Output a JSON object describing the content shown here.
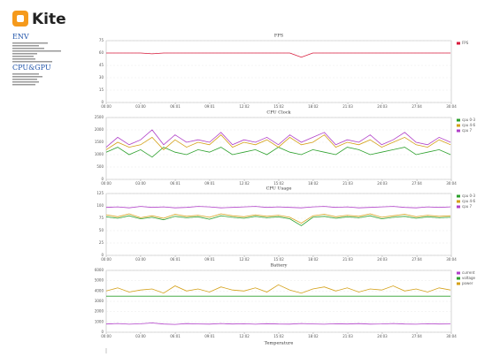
{
  "logo": "Kite",
  "sections": [
    "ENV",
    "CPU&GPU"
  ],
  "chart_data": [
    {
      "type": "line",
      "title": "FPS",
      "x": [
        0,
        60,
        120,
        180,
        240,
        300,
        360,
        420,
        480,
        540,
        600,
        660,
        720,
        780,
        840,
        900,
        960,
        1020,
        1080,
        1140,
        1200,
        1260,
        1320,
        1380,
        1440,
        1500,
        1560,
        1620,
        1680,
        1740,
        1800
      ],
      "xlim": [
        0,
        1804
      ],
      "xticks": [
        {
          "value": 0,
          "label": "00:00"
        },
        {
          "value": 180,
          "label": "03:00"
        },
        {
          "value": 361,
          "label": "06:01"
        },
        {
          "value": 541,
          "label": "09:01"
        },
        {
          "value": 722,
          "label": "12:02"
        },
        {
          "value": 902,
          "label": "15:02"
        },
        {
          "value": 1082,
          "label": "18:02"
        },
        {
          "value": 1263,
          "label": "21:03"
        },
        {
          "value": 1443,
          "label": "24:03"
        },
        {
          "value": 1624,
          "label": "27:04"
        },
        {
          "value": 1804,
          "label": "30:04"
        }
      ],
      "ylim": [
        0,
        75
      ],
      "yticks": [
        0,
        15,
        30,
        45,
        60,
        75
      ],
      "series": [
        {
          "name": "FPS",
          "color": "#d81b3c",
          "values": [
            60,
            60,
            60,
            60,
            59,
            60,
            60,
            60,
            60,
            60,
            60,
            60,
            60,
            60,
            60,
            60,
            60,
            55,
            60,
            60,
            60,
            60,
            60,
            60,
            60,
            60,
            60,
            60,
            60,
            60,
            60
          ]
        }
      ]
    },
    {
      "type": "line",
      "title": "CPU Clock",
      "x": [
        0,
        60,
        120,
        180,
        240,
        300,
        360,
        420,
        480,
        540,
        600,
        660,
        720,
        780,
        840,
        900,
        960,
        1020,
        1080,
        1140,
        1200,
        1260,
        1320,
        1380,
        1440,
        1500,
        1560,
        1620,
        1680,
        1740,
        1800
      ],
      "xlim": [
        0,
        1804
      ],
      "xticks": [
        {
          "value": 0,
          "label": "00:00"
        },
        {
          "value": 180,
          "label": "03:00"
        },
        {
          "value": 361,
          "label": "06:01"
        },
        {
          "value": 541,
          "label": "09:01"
        },
        {
          "value": 722,
          "label": "12:02"
        },
        {
          "value": 902,
          "label": "15:02"
        },
        {
          "value": 1082,
          "label": "18:02"
        },
        {
          "value": 1263,
          "label": "21:03"
        },
        {
          "value": 1443,
          "label": "24:03"
        },
        {
          "value": 1624,
          "label": "27:04"
        },
        {
          "value": 1804,
          "label": "30:04"
        }
      ],
      "ylim": [
        0,
        2500
      ],
      "yticks": [
        0,
        500,
        1000,
        1500,
        2000,
        2500
      ],
      "series": [
        {
          "name": "cpu 0-3",
          "color": "#2ca02c",
          "values": [
            1100,
            1300,
            1000,
            1200,
            900,
            1300,
            1100,
            1000,
            1200,
            1100,
            1300,
            1000,
            1100,
            1200,
            1000,
            1300,
            1100,
            1000,
            1200,
            1100,
            1000,
            1300,
            1200,
            1000,
            1100,
            1200,
            1300,
            1000,
            1100,
            1200,
            1000
          ]
        },
        {
          "name": "cpu 4-6",
          "color": "#d4a017",
          "values": [
            1200,
            1500,
            1300,
            1400,
            1700,
            1200,
            1600,
            1300,
            1500,
            1400,
            1800,
            1300,
            1500,
            1400,
            1600,
            1300,
            1700,
            1400,
            1500,
            1800,
            1300,
            1500,
            1400,
            1600,
            1300,
            1500,
            1700,
            1400,
            1300,
            1600,
            1400
          ]
        },
        {
          "name": "cpu 7",
          "color": "#b040c8",
          "values": [
            1300,
            1700,
            1400,
            1600,
            2000,
            1400,
            1800,
            1500,
            1600,
            1500,
            1900,
            1400,
            1600,
            1500,
            1700,
            1400,
            1800,
            1500,
            1700,
            1900,
            1400,
            1600,
            1500,
            1800,
            1400,
            1600,
            1900,
            1500,
            1400,
            1700,
            1500
          ]
        }
      ]
    },
    {
      "type": "line",
      "title": "CPU Usage",
      "x": [
        0,
        60,
        120,
        180,
        240,
        300,
        360,
        420,
        480,
        540,
        600,
        660,
        720,
        780,
        840,
        900,
        960,
        1020,
        1080,
        1140,
        1200,
        1260,
        1320,
        1380,
        1440,
        1500,
        1560,
        1620,
        1680,
        1740,
        1800
      ],
      "xlim": [
        0,
        1804
      ],
      "xticks": [
        {
          "value": 0,
          "label": "00:00"
        },
        {
          "value": 180,
          "label": "03:00"
        },
        {
          "value": 361,
          "label": "06:01"
        },
        {
          "value": 541,
          "label": "09:01"
        },
        {
          "value": 722,
          "label": "12:02"
        },
        {
          "value": 902,
          "label": "15:02"
        },
        {
          "value": 1082,
          "label": "18:02"
        },
        {
          "value": 1263,
          "label": "21:03"
        },
        {
          "value": 1443,
          "label": "24:03"
        },
        {
          "value": 1624,
          "label": "27:04"
        },
        {
          "value": 1804,
          "label": "30:04"
        }
      ],
      "ylim": [
        0,
        125
      ],
      "yticks": [
        0,
        25,
        50,
        75,
        100,
        125
      ],
      "series": [
        {
          "name": "cpu 0-3",
          "color": "#2ca02c",
          "values": [
            78,
            75,
            80,
            74,
            77,
            72,
            79,
            76,
            78,
            73,
            80,
            77,
            75,
            79,
            76,
            78,
            74,
            60,
            77,
            79,
            75,
            78,
            76,
            80,
            74,
            77,
            79,
            75,
            78,
            76,
            77
          ]
        },
        {
          "name": "cpu 4-6",
          "color": "#d4a017",
          "values": [
            82,
            78,
            84,
            76,
            80,
            75,
            83,
            79,
            81,
            77,
            84,
            80,
            78,
            82,
            79,
            81,
            77,
            65,
            80,
            83,
            78,
            81,
            79,
            84,
            77,
            80,
            83,
            78,
            81,
            79,
            80
          ]
        },
        {
          "name": "cpu 7",
          "color": "#b040c8",
          "values": [
            97,
            98,
            96,
            99,
            97,
            98,
            96,
            97,
            99,
            98,
            96,
            97,
            98,
            99,
            97,
            98,
            97,
            96,
            98,
            99,
            97,
            98,
            96,
            97,
            98,
            99,
            97,
            96,
            98,
            97,
            98
          ]
        }
      ]
    },
    {
      "type": "line",
      "title": "Battery",
      "x": [
        0,
        60,
        120,
        180,
        240,
        300,
        360,
        420,
        480,
        540,
        600,
        660,
        720,
        780,
        840,
        900,
        960,
        1020,
        1080,
        1140,
        1200,
        1260,
        1320,
        1380,
        1440,
        1500,
        1560,
        1620,
        1680,
        1740,
        1800
      ],
      "xlim": [
        0,
        1804
      ],
      "xticks": [
        {
          "value": 0,
          "label": "00:00"
        },
        {
          "value": 180,
          "label": "03:00"
        },
        {
          "value": 361,
          "label": "06:01"
        },
        {
          "value": 541,
          "label": "09:01"
        },
        {
          "value": 722,
          "label": "12:02"
        },
        {
          "value": 902,
          "label": "15:02"
        },
        {
          "value": 1082,
          "label": "18:02"
        },
        {
          "value": 1263,
          "label": "21:03"
        },
        {
          "value": 1443,
          "label": "24:03"
        },
        {
          "value": 1624,
          "label": "27:04"
        },
        {
          "value": 1804,
          "label": "30:04"
        }
      ],
      "ylim": [
        0,
        6000
      ],
      "yticks": [
        0,
        1000,
        2000,
        3000,
        4000,
        5000,
        6000
      ],
      "series": [
        {
          "name": "current",
          "color": "#b040c8",
          "values": [
            800,
            850,
            780,
            820,
            900,
            800,
            760,
            840,
            810,
            790,
            850,
            800,
            820,
            780,
            830,
            800,
            790,
            850,
            810,
            780,
            820,
            800,
            840,
            790,
            810,
            850,
            800,
            780,
            820,
            800,
            810
          ]
        },
        {
          "name": "voltage",
          "color": "#2ca02c",
          "values": [
            3500,
            3500,
            3500,
            3500,
            3500,
            3500,
            3500,
            3500,
            3500,
            3500,
            3500,
            3500,
            3500,
            3500,
            3500,
            3500,
            3500,
            3500,
            3500,
            3500,
            3500,
            3500,
            3500,
            3500,
            3500,
            3500,
            3500,
            3500,
            3500,
            3500,
            3500
          ]
        },
        {
          "name": "power",
          "color": "#d4a017",
          "values": [
            4000,
            4300,
            3900,
            4100,
            4200,
            3800,
            4500,
            4000,
            4200,
            3900,
            4400,
            4100,
            4000,
            4300,
            3900,
            4600,
            4100,
            3800,
            4200,
            4400,
            4000,
            4300,
            3900,
            4200,
            4100,
            4500,
            4000,
            4200,
            3900,
            4300,
            4100
          ]
        }
      ]
    },
    {
      "type": "line",
      "title": "Temperature"
    }
  ]
}
